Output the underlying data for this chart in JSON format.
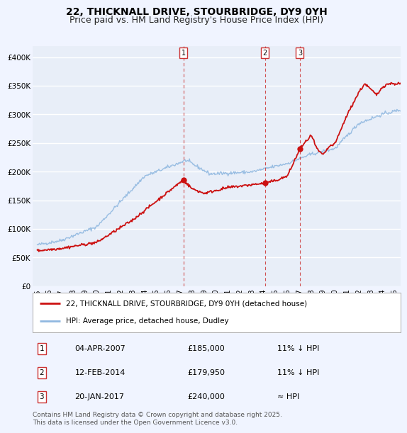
{
  "title": "22, THICKNALL DRIVE, STOURBRIDGE, DY9 0YH",
  "subtitle": "Price paid vs. HM Land Registry's House Price Index (HPI)",
  "ylim": [
    0,
    420000
  ],
  "yticks": [
    0,
    50000,
    100000,
    150000,
    200000,
    250000,
    300000,
    350000,
    400000
  ],
  "ytick_labels": [
    "£0",
    "£50K",
    "£100K",
    "£150K",
    "£200K",
    "£250K",
    "£300K",
    "£350K",
    "£400K"
  ],
  "background_color": "#f0f4ff",
  "plot_bg_color": "#e8eef8",
  "grid_color": "#d8e0f0",
  "hpi_color": "#90b8e0",
  "price_color": "#cc1111",
  "vline_color": "#cc3333",
  "sale_events": [
    {
      "label": "1",
      "date_str": "04-APR-2007",
      "year": 2007.26,
      "price": 185000,
      "note": "11% ↓ HPI"
    },
    {
      "label": "2",
      "date_str": "12-FEB-2014",
      "year": 2014.12,
      "price": 179950,
      "note": "11% ↓ HPI"
    },
    {
      "label": "3",
      "date_str": "20-JAN-2017",
      "year": 2017.05,
      "price": 240000,
      "note": "≈ HPI"
    }
  ],
  "legend_property_label": "22, THICKNALL DRIVE, STOURBRIDGE, DY9 0YH (detached house)",
  "legend_hpi_label": "HPI: Average price, detached house, Dudley",
  "footnote": "Contains HM Land Registry data © Crown copyright and database right 2025.\nThis data is licensed under the Open Government Licence v3.0.",
  "title_fontsize": 10,
  "subtitle_fontsize": 9,
  "tick_fontsize": 7.5,
  "legend_fontsize": 7.5,
  "table_fontsize": 8,
  "footnote_fontsize": 6.5
}
